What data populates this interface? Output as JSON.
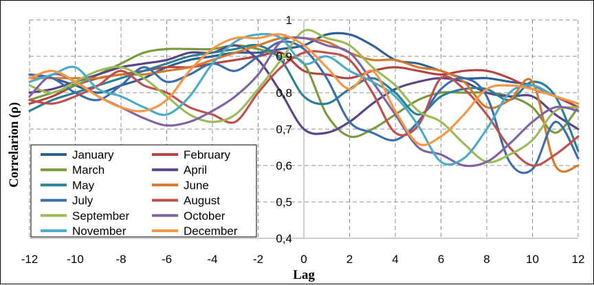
{
  "chart_data": {
    "type": "line",
    "title": "",
    "xlabel": "Lag",
    "ylabel": "Correlarion (ρ)",
    "xlim": [
      -12,
      12
    ],
    "ylim": [
      0.4,
      1.0
    ],
    "x_ticks": [
      -12,
      -10,
      -8,
      -6,
      -4,
      -2,
      0,
      2,
      4,
      6,
      8,
      10,
      12
    ],
    "x_tick_labels": [
      "-12",
      "-10",
      "-8",
      "-6",
      "-4",
      "-2",
      "0",
      "2",
      "4",
      "6",
      "8",
      "10",
      "12"
    ],
    "y_ticks": [
      0.4,
      0.5,
      0.6,
      0.7,
      0.8,
      0.9,
      1.0
    ],
    "y_tick_labels": [
      "0,4",
      "0,5",
      "0,6",
      "0,7",
      "0,8",
      "0,9",
      "1"
    ],
    "grid": "horizontal and vertical dashed",
    "legend_position": "bottom-left",
    "x": [
      -12,
      -11,
      -10,
      -9,
      -8,
      -7,
      -6,
      -5,
      -4,
      -3,
      -2,
      -1,
      0,
      1,
      2,
      3,
      4,
      5,
      6,
      7,
      8,
      9,
      10,
      11,
      12
    ],
    "series": [
      {
        "name": "January",
        "color": "#2F5F94",
        "values": [
          0.85,
          0.84,
          0.82,
          0.8,
          0.82,
          0.84,
          0.87,
          0.89,
          0.9,
          0.91,
          0.91,
          0.92,
          0.93,
          0.96,
          0.96,
          0.93,
          0.89,
          0.88,
          0.86,
          0.84,
          0.84,
          0.83,
          0.82,
          0.79,
          0.76
        ]
      },
      {
        "name": "February",
        "color": "#B24442",
        "values": [
          0.77,
          0.79,
          0.82,
          0.84,
          0.85,
          0.86,
          0.87,
          0.87,
          0.88,
          0.89,
          0.9,
          0.91,
          0.86,
          0.85,
          0.84,
          0.86,
          0.87,
          0.86,
          0.85,
          0.86,
          0.86,
          0.84,
          0.81,
          0.79,
          0.76
        ]
      },
      {
        "name": "March",
        "color": "#7A9A3D",
        "values": [
          0.78,
          0.8,
          0.82,
          0.85,
          0.88,
          0.91,
          0.92,
          0.92,
          0.92,
          0.93,
          0.92,
          0.9,
          0.88,
          0.74,
          0.68,
          0.7,
          0.74,
          0.78,
          0.8,
          0.8,
          0.8,
          0.79,
          0.76,
          0.69,
          0.76
        ]
      },
      {
        "name": "April",
        "color": "#5C4586",
        "values": [
          0.8,
          0.81,
          0.83,
          0.85,
          0.87,
          0.88,
          0.89,
          0.91,
          0.91,
          0.93,
          0.89,
          0.8,
          0.7,
          0.69,
          0.72,
          0.77,
          0.81,
          0.83,
          0.84,
          0.83,
          0.8,
          0.79,
          0.79,
          0.74,
          0.7
        ]
      },
      {
        "name": "May",
        "color": "#2B8093",
        "values": [
          0.75,
          0.78,
          0.8,
          0.82,
          0.84,
          0.86,
          0.88,
          0.9,
          0.91,
          0.92,
          0.93,
          0.89,
          0.79,
          0.77,
          0.81,
          0.84,
          0.8,
          0.74,
          0.79,
          0.81,
          0.81,
          0.78,
          0.83,
          0.79,
          0.64
        ]
      },
      {
        "name": "June",
        "color": "#D47A2A",
        "values": [
          0.84,
          0.84,
          0.84,
          0.84,
          0.85,
          0.85,
          0.86,
          0.87,
          0.89,
          0.91,
          0.93,
          0.95,
          0.95,
          0.94,
          0.91,
          0.89,
          0.89,
          0.87,
          0.86,
          0.83,
          0.76,
          0.78,
          0.83,
          0.6,
          0.6
        ]
      },
      {
        "name": "July",
        "color": "#3C6EAE",
        "values": [
          0.85,
          0.84,
          0.8,
          0.78,
          0.82,
          0.87,
          0.83,
          0.85,
          0.88,
          0.86,
          0.9,
          0.94,
          0.92,
          0.84,
          0.72,
          0.69,
          0.67,
          0.72,
          0.81,
          0.84,
          0.79,
          0.61,
          0.59,
          0.72,
          0.62
        ]
      },
      {
        "name": "August",
        "color": "#C0504D",
        "values": [
          0.78,
          0.77,
          0.79,
          0.82,
          0.86,
          0.82,
          0.8,
          0.76,
          0.74,
          0.72,
          0.8,
          0.87,
          0.91,
          0.91,
          0.89,
          0.8,
          0.69,
          0.71,
          0.84,
          0.81,
          0.74,
          0.65,
          0.6,
          0.63,
          0.68
        ]
      },
      {
        "name": "September",
        "color": "#9BBB59",
        "values": [
          0.82,
          0.8,
          0.83,
          0.86,
          0.87,
          0.84,
          0.79,
          0.74,
          0.72,
          0.74,
          0.81,
          0.89,
          0.97,
          0.95,
          0.93,
          0.87,
          0.82,
          0.75,
          0.72,
          0.66,
          0.61,
          0.63,
          0.67,
          0.75,
          0.76
        ]
      },
      {
        "name": "October",
        "color": "#8064A2",
        "values": [
          0.79,
          0.85,
          0.83,
          0.79,
          0.76,
          0.73,
          0.71,
          0.72,
          0.75,
          0.79,
          0.85,
          0.94,
          0.95,
          0.93,
          0.91,
          0.83,
          0.74,
          0.65,
          0.63,
          0.6,
          0.61,
          0.66,
          0.72,
          0.76,
          0.75
        ]
      },
      {
        "name": "November",
        "color": "#4BACC6",
        "values": [
          0.83,
          0.85,
          0.87,
          0.81,
          0.79,
          0.76,
          0.74,
          0.79,
          0.88,
          0.94,
          0.96,
          0.95,
          0.88,
          0.9,
          0.86,
          0.83,
          0.79,
          0.71,
          0.61,
          0.62,
          0.7,
          0.8,
          0.82,
          0.79,
          0.77
        ]
      },
      {
        "name": "December",
        "color": "#F79646",
        "values": [
          0.84,
          0.86,
          0.83,
          0.79,
          0.76,
          0.75,
          0.78,
          0.86,
          0.92,
          0.95,
          0.95,
          0.96,
          0.93,
          0.87,
          0.81,
          0.86,
          0.75,
          0.66,
          0.68,
          0.74,
          0.81,
          0.82,
          0.81,
          0.79,
          0.77
        ]
      }
    ]
  }
}
